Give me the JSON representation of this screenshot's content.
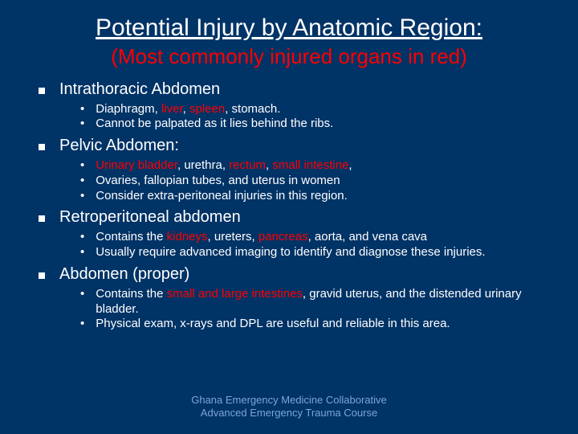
{
  "colors": {
    "background": "#003366",
    "text": "#ffffff",
    "highlight": "#ff0000",
    "footer": "#7ca6d8"
  },
  "typography": {
    "title_fontsize": 30,
    "subtitle_fontsize": 26,
    "main_fontsize": 20,
    "sub_fontsize": 15,
    "footer_fontsize": 13,
    "font_family": "Arial"
  },
  "title_line1": "Potential Injury by Anatomic Region:",
  "subtitle": "(Most commonly injured organs in red)",
  "sections": {
    "s0": {
      "label": "Intrathoracic Abdomen",
      "b0_pre": "Diaphragm, ",
      "b0_r0": "liver",
      "b0_mid": ", ",
      "b0_r1": "spleen",
      "b0_post": ", stomach.",
      "b1": "Cannot be palpated as it lies behind the ribs."
    },
    "s1": {
      "label": "Pelvic Abdomen:",
      "b0_r0": "Urinary bladder",
      "b0_m0": ", urethra, ",
      "b0_r1": "rectum",
      "b0_m1": ", ",
      "b0_r2": "small intestine",
      "b0_post": ",",
      "b1": "Ovaries, fallopian tubes, and uterus in women",
      "b2": "Consider extra-peritoneal injuries in this region."
    },
    "s2": {
      "label": "Retroperitoneal abdomen",
      "b0_pre": "Contains the ",
      "b0_r0": "kidneys",
      "b0_m0": ", ureters, ",
      "b0_r1": "pancreas",
      "b0_post": ", aorta, and vena cava",
      "b1": "Usually require advanced imaging to identify and diagnose these injuries."
    },
    "s3": {
      "label": "Abdomen (proper)",
      "b0_pre": "Contains the ",
      "b0_r0": "small and large intestines",
      "b0_post": ", gravid uterus, and the distended urinary bladder.",
      "b1": "Physical exam, x-rays and DPL are useful and reliable in this area."
    }
  },
  "footer": {
    "line1": "Ghana Emergency Medicine Collaborative",
    "line2": "Advanced Emergency Trauma Course"
  }
}
